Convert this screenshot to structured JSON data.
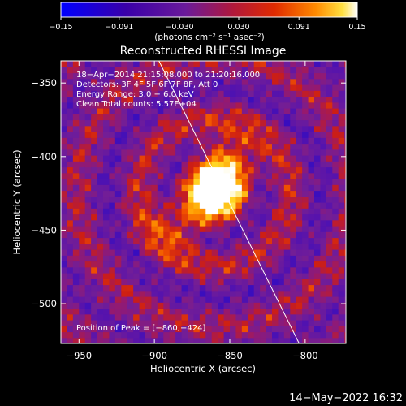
{
  "chart_data": {
    "type": "heatmap",
    "title": "Reconstructed RHESSI Image",
    "xlabel": "Heliocentric X (arcsec)",
    "ylabel": "Heliocentric Y (arcsec)",
    "xlim": [
      -962,
      -773
    ],
    "ylim": [
      -527,
      -335
    ],
    "xticks": [
      -950,
      -900,
      -850,
      -800
    ],
    "xtick_labels": [
      "−950",
      "−900",
      "−850",
      "−800"
    ],
    "yticks": [
      -350,
      -400,
      -450,
      -500
    ],
    "ytick_labels": [
      "−350",
      "−400",
      "−450",
      "−500"
    ],
    "colorbar": {
      "range": [
        -0.15,
        0.15
      ],
      "ticks": [
        -0.15,
        -0.091,
        -0.03,
        0.03,
        0.091,
        0.15
      ],
      "tick_labels": [
        "−0.15",
        "−0.091",
        "−0.030",
        "0.030",
        "0.091",
        "0.15"
      ],
      "units_label": "(photons cm⁻² s⁻¹ asec⁻²)"
    },
    "info_lines": [
      "18−Apr−2014 21:15:08.000 to 21:20:16.000",
      "Detectors: 3F 4F 5F 6F 7F 8F, Att 0",
      "Energy Range: 3.0 − 6.0 keV",
      "Clean     Total counts: 5.57E+04"
    ],
    "peak_label": "Position of Peak = [−860,−424]",
    "peak": [
      -860,
      -424
    ],
    "sources": [
      {
        "x": -860,
        "y": -424,
        "peak": 0.15
      },
      {
        "x": -850,
        "y": -402,
        "peak": 0.1
      },
      {
        "x": -885,
        "y": -447,
        "peak": 0.075
      }
    ],
    "limb_line": [
      [
        -897,
        -335
      ],
      [
        -804,
        -527
      ]
    ],
    "grid": false
  },
  "footer": {
    "timestamp": "14−May−2022 16:32"
  },
  "colors": {
    "background": "#000000",
    "foreground": "#ffffff",
    "colorscale": [
      "#0000ff",
      "#3a00a8",
      "#7a1aa8",
      "#b01a60",
      "#e02a00",
      "#ff7a00",
      "#ffd200",
      "#ffffff"
    ]
  }
}
